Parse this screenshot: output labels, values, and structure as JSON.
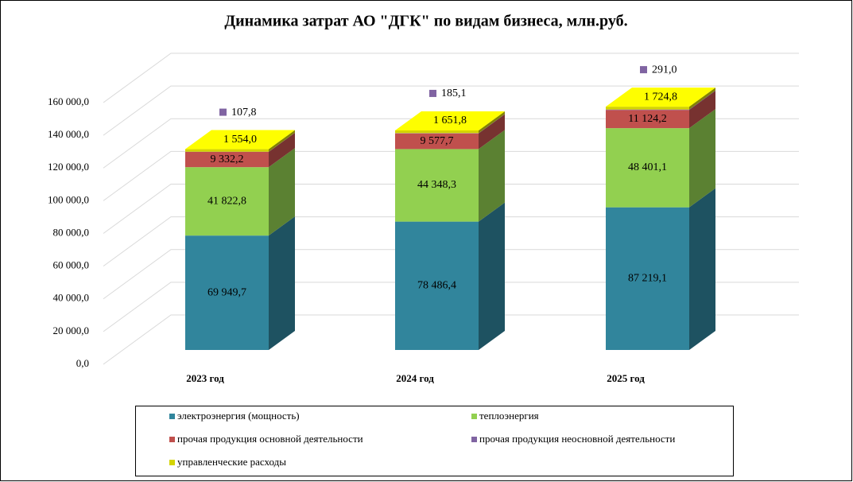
{
  "chart_data": {
    "type": "bar3d_stacked",
    "title": "Динамика затрат  АО \"ДГК\" по видам  бизнеса, млн.руб.",
    "categories": [
      "2023 год",
      "2024 год",
      "2025 год"
    ],
    "series": [
      {
        "name": "электроэнергия  (мощность)",
        "color": "#31859c",
        "values": [
          69949.7,
          78486.4,
          87219.1
        ],
        "value_labels": [
          "69 949,7",
          "78 486,4",
          "87 219,1"
        ]
      },
      {
        "name": "теплоэнергия",
        "color": "#92d050",
        "values": [
          41822.8,
          44348.3,
          48401.1
        ],
        "value_labels": [
          "41 822,8",
          "44 348,3",
          "48 401,1"
        ]
      },
      {
        "name": "прочая  продукция  основной  деятельности",
        "color": "#c0504d",
        "values": [
          9332.2,
          9577.7,
          11124.2
        ],
        "value_labels": [
          "9 332,2",
          "9 577,7",
          "11 124,2"
        ]
      },
      {
        "name": "прочая  продукция  неосновной  деятельности",
        "color": "#8064a2",
        "values": [
          107.8,
          185.1,
          291.0
        ],
        "value_labels": [
          "107,8",
          "185,1",
          "291,0"
        ]
      },
      {
        "name": "управленческие  расходы",
        "color": "#d4d400",
        "values": [
          1554.0,
          1651.8,
          1724.8
        ],
        "value_labels": [
          "1 554,0",
          "1 651,8",
          "1 724,8"
        ]
      }
    ],
    "ylim": [
      0,
      160000
    ],
    "yticks": [
      {
        "value": 0,
        "label": "0,0"
      },
      {
        "value": 20000,
        "label": "20 000,0"
      },
      {
        "value": 40000,
        "label": "40 000,0"
      },
      {
        "value": 60000,
        "label": "60 000,0"
      },
      {
        "value": 80000,
        "label": "80 000,0"
      },
      {
        "value": 100000,
        "label": "100 000,0"
      },
      {
        "value": 120000,
        "label": "120 000,0"
      },
      {
        "value": 140000,
        "label": "140 000,0"
      },
      {
        "value": 160000,
        "label": "160 000,0"
      }
    ],
    "grid": true,
    "legend": "bottom"
  }
}
